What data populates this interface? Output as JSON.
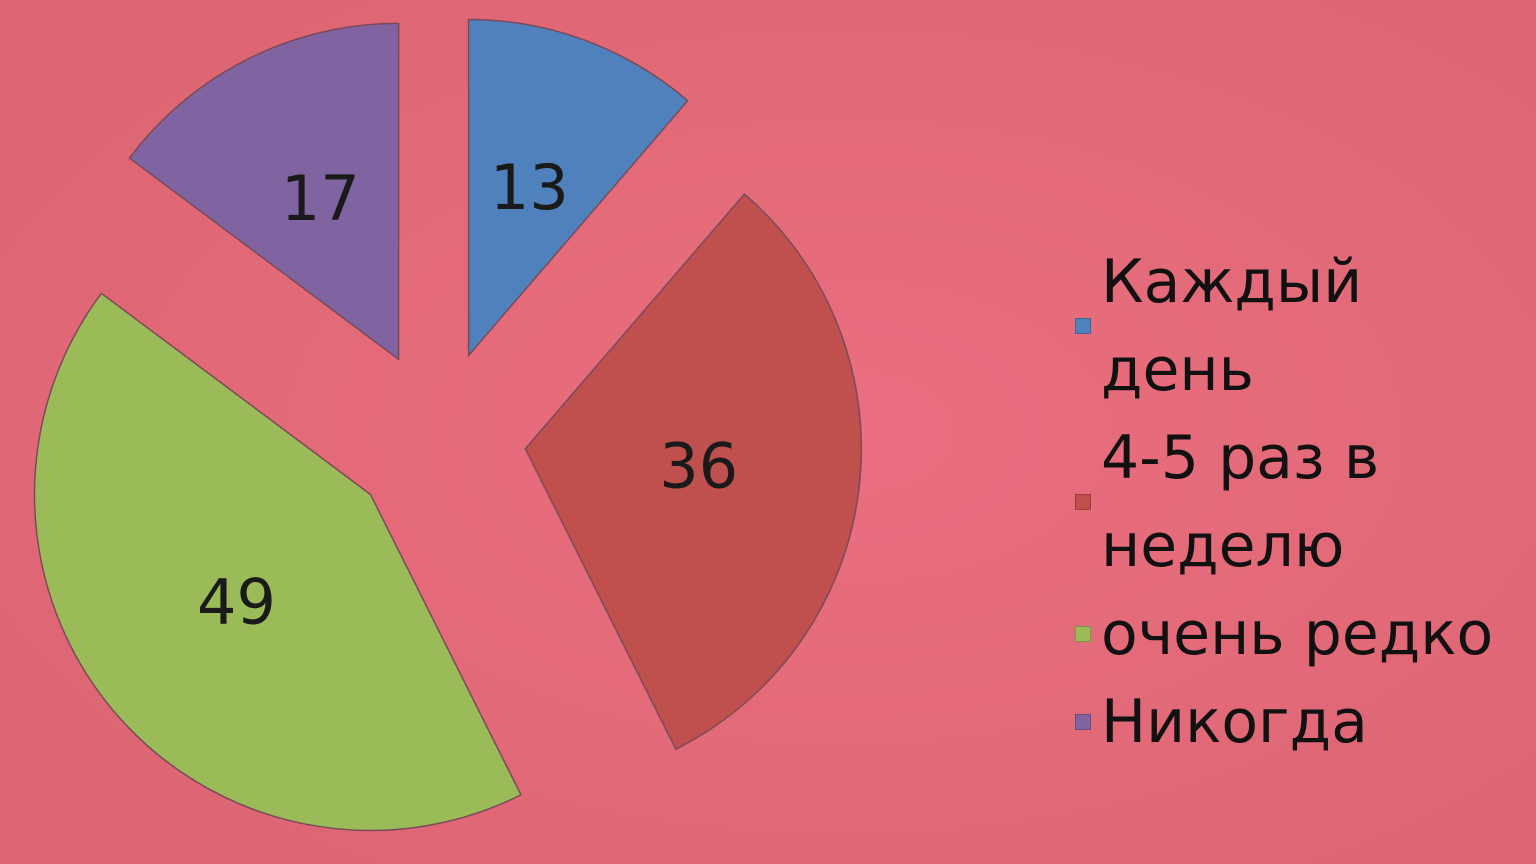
{
  "chart_data": {
    "type": "pie",
    "categories": [
      "Каждый день",
      "4-5 раз в неделю",
      "очень редко",
      "Никогда"
    ],
    "values": [
      13,
      36,
      49,
      17
    ],
    "colors": [
      "#4f81bd",
      "#c0504d",
      "#9bbb59",
      "#8064a2"
    ],
    "exploded": true,
    "legend": "right"
  }
}
